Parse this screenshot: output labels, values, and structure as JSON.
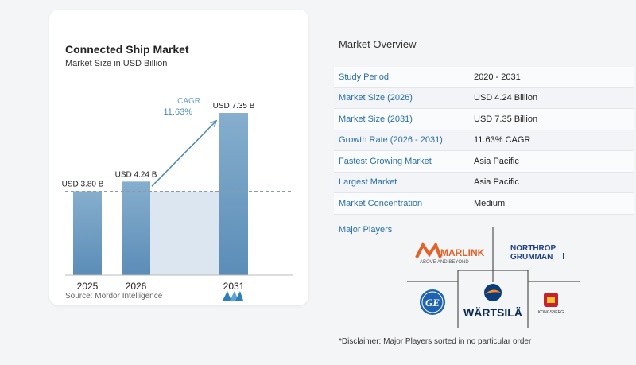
{
  "chart_data": {
    "type": "bar",
    "title": "Connected Ship Market",
    "subtitle": "Market Size in USD Billion",
    "categories": [
      "2025",
      "2026",
      "2031"
    ],
    "values": [
      3.8,
      4.24,
      7.35
    ],
    "value_labels": [
      "USD 3.80 B",
      "USD 4.24 B",
      "USD 7.35 B"
    ],
    "ylim": [
      0,
      7.35
    ],
    "annotation": {
      "label": "CAGR",
      "value": "11.63%"
    },
    "reference_line_value": 3.8,
    "colors": {
      "bar": "#5b8db8",
      "bar_top": "#86aecd",
      "band": "#dbe6f0",
      "arrow": "#4a88b8",
      "cagr": "#4a88b8"
    }
  },
  "source": "Source:  Mordor Intelligence",
  "overview": {
    "title": "Market Overview",
    "rows": [
      {
        "key": "Study Period",
        "value": "2020 - 2031"
      },
      {
        "key": "Market Size (2026)",
        "value": "USD 4.24 Billion"
      },
      {
        "key": "Market Size (2031)",
        "value": "USD 7.35 Billion"
      },
      {
        "key": "Growth Rate (2026 - 2031)",
        "value": "11.63% CAGR"
      },
      {
        "key": "Fastest Growing Market",
        "value": "Asia Pacific"
      },
      {
        "key": "Largest Market",
        "value": "Asia Pacific"
      },
      {
        "key": "Market Concentration",
        "value": "Medium"
      }
    ],
    "players_label": "Major Players",
    "players": {
      "marlink": "MARLINK",
      "marlink_tag": "ABOVE AND BEYOND",
      "northrop_1": "NORTHROP",
      "northrop_2": "GRUMMAN",
      "ge": "GE",
      "wartsila": "WÄRTSILÄ",
      "kongsberg": "KONGSBERG"
    },
    "disclaimer": "*Disclaimer: Major Players sorted in no particular order"
  }
}
